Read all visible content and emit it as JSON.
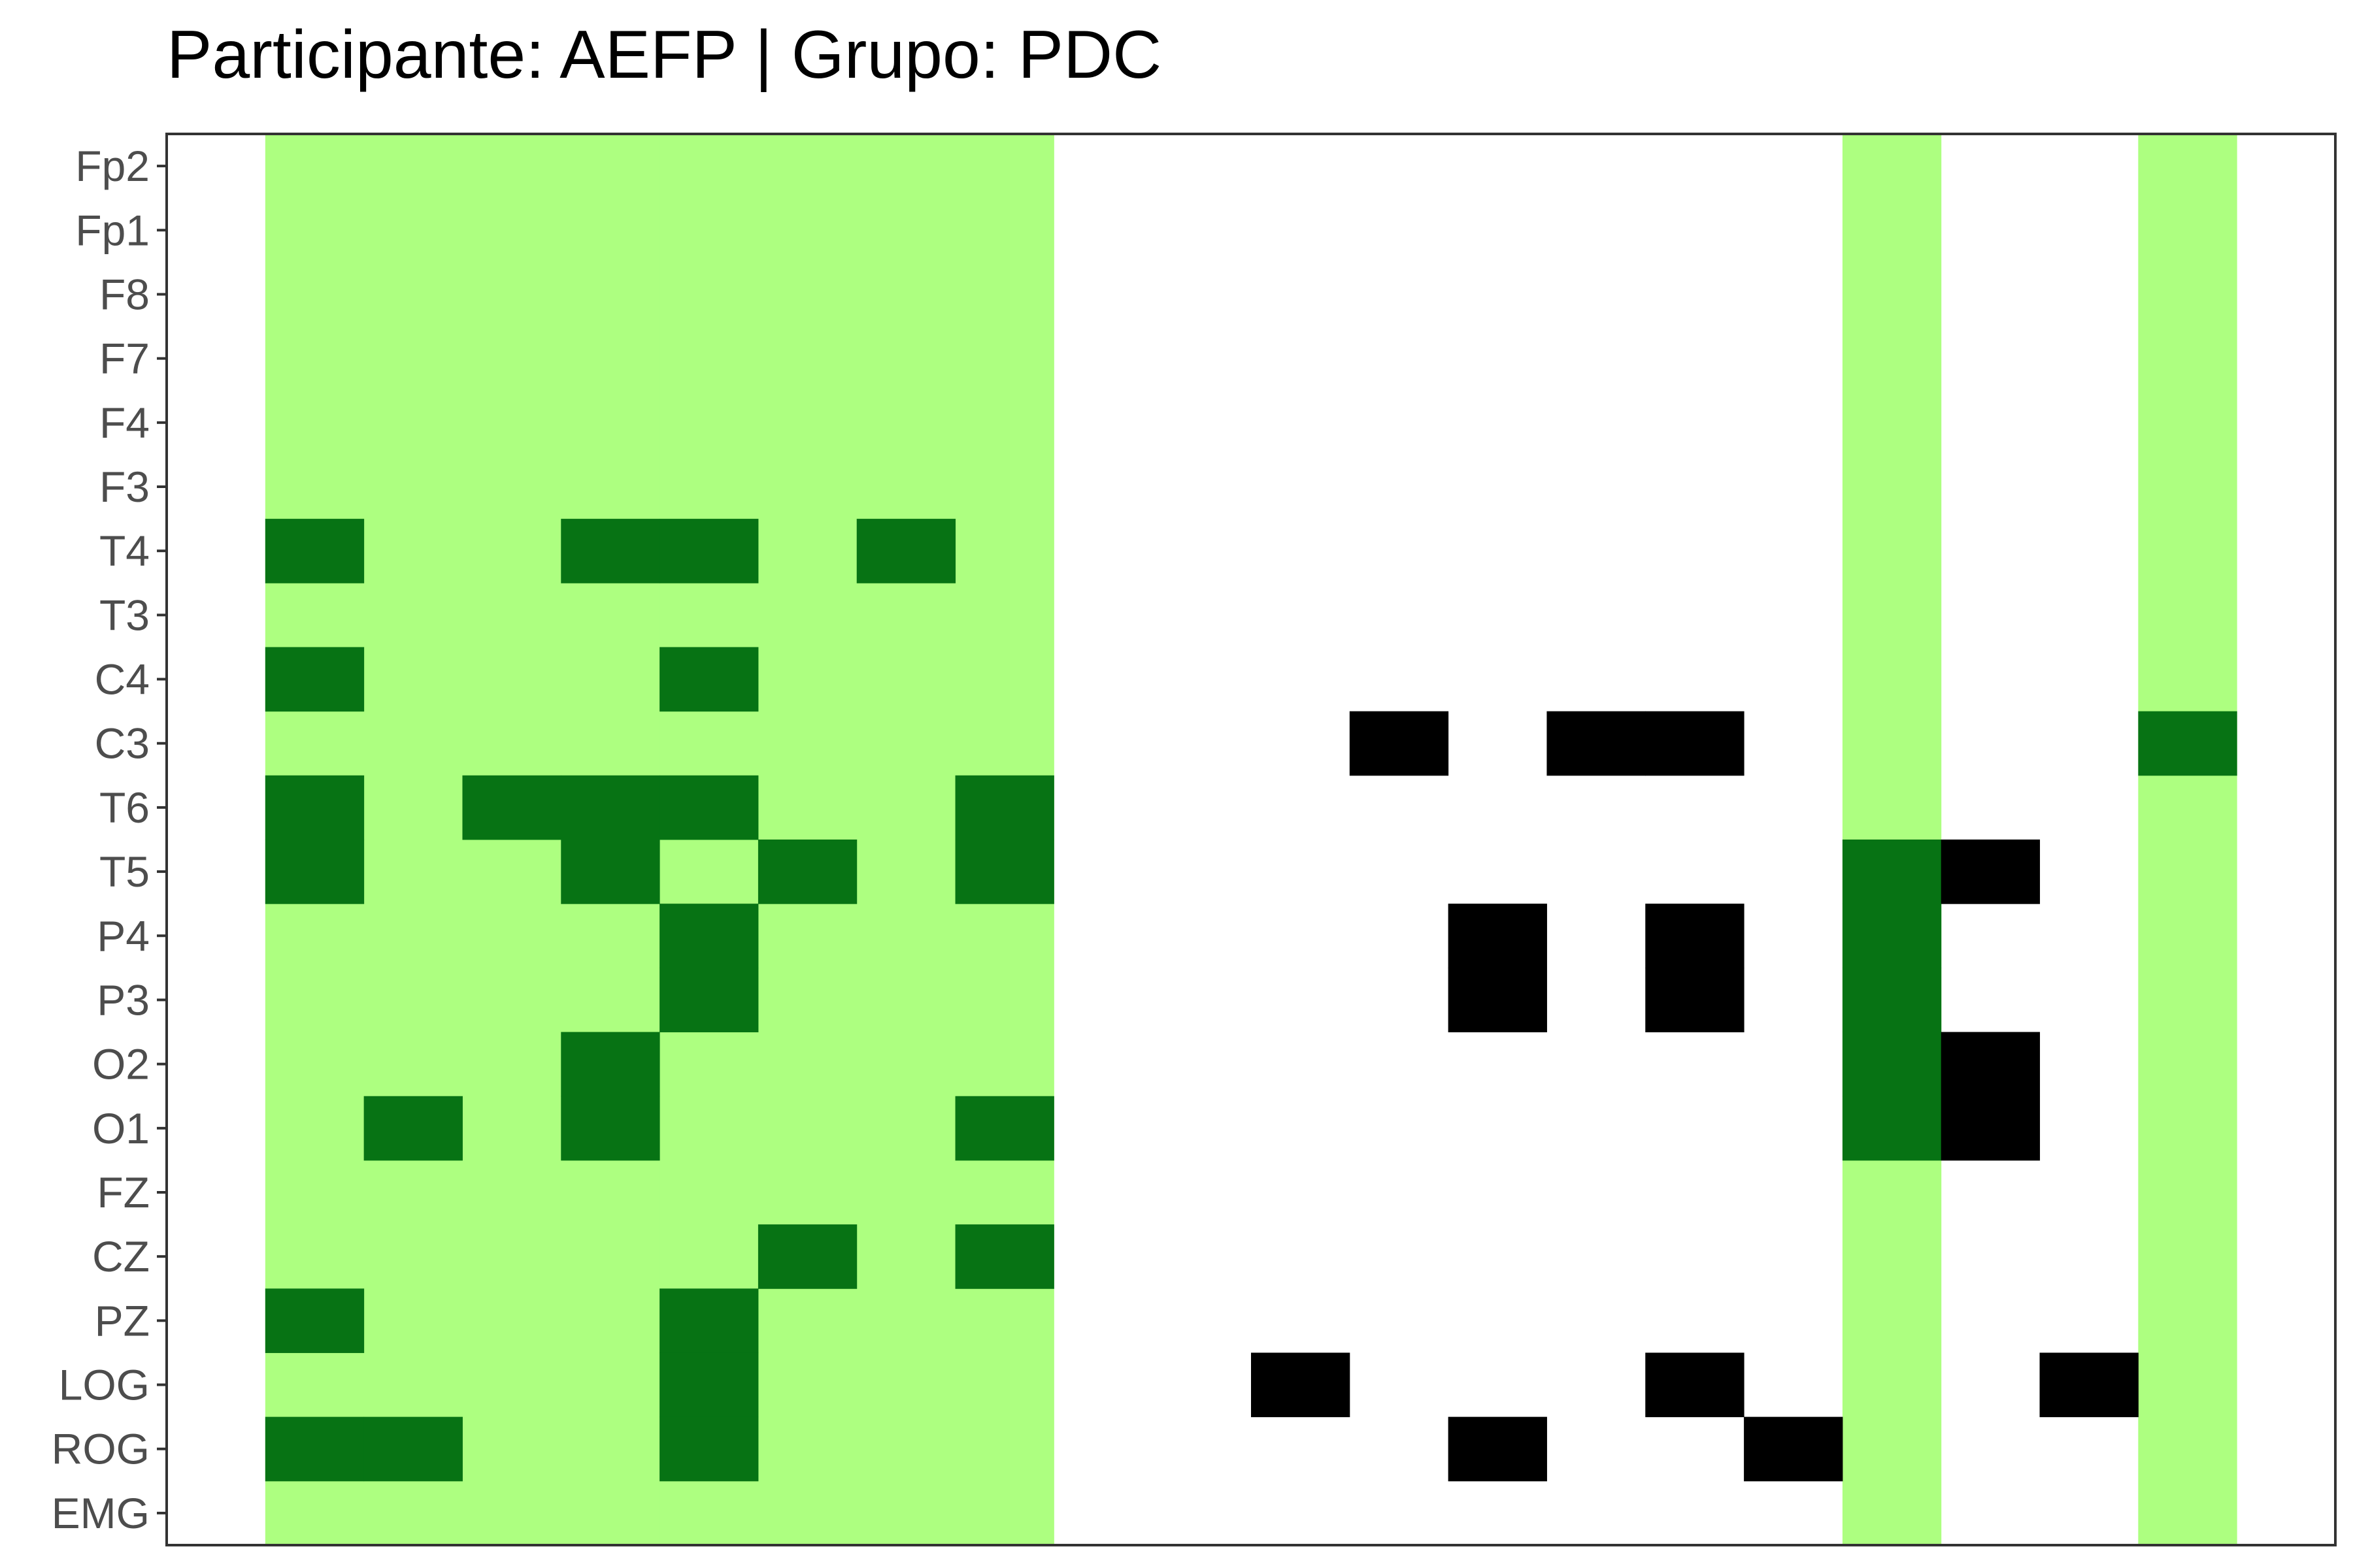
{
  "chart_data": {
    "type": "heatmap",
    "title": "Participante: AEFP | Grupo: PDC",
    "y_labels": [
      "Fp2",
      "Fp1",
      "F8",
      "F7",
      "F4",
      "F3",
      "T4",
      "T3",
      "C4",
      "C3",
      "T6",
      "T5",
      "P4",
      "P3",
      "O2",
      "O1",
      "FZ",
      "CZ",
      "PZ",
      "LOG",
      "ROG",
      "EMG"
    ],
    "n_columns": 22,
    "legend": "none",
    "grid": false,
    "colors": {
      "background": "#ffffff",
      "highlight": "#adff80",
      "green": "#077314",
      "black": "#000000",
      "border": "#333333",
      "tick_label": "#4d4d4d"
    },
    "highlight_columns": [
      1,
      2,
      3,
      4,
      5,
      6,
      7,
      8,
      17,
      20
    ],
    "cells": [
      {
        "channel": "T4",
        "column": 1,
        "color": "green"
      },
      {
        "channel": "T4",
        "column": 4,
        "color": "green"
      },
      {
        "channel": "T4",
        "column": 5,
        "color": "green"
      },
      {
        "channel": "T4",
        "column": 7,
        "color": "green"
      },
      {
        "channel": "C4",
        "column": 1,
        "color": "green"
      },
      {
        "channel": "C4",
        "column": 5,
        "color": "green"
      },
      {
        "channel": "C3",
        "column": 12,
        "color": "black"
      },
      {
        "channel": "C3",
        "column": 14,
        "color": "black"
      },
      {
        "channel": "C3",
        "column": 15,
        "color": "black"
      },
      {
        "channel": "C3",
        "column": 20,
        "color": "green"
      },
      {
        "channel": "T6",
        "column": 1,
        "color": "green"
      },
      {
        "channel": "T6",
        "column": 3,
        "color": "green"
      },
      {
        "channel": "T6",
        "column": 4,
        "color": "green"
      },
      {
        "channel": "T6",
        "column": 5,
        "color": "green"
      },
      {
        "channel": "T6",
        "column": 8,
        "color": "green"
      },
      {
        "channel": "T5",
        "column": 1,
        "color": "green"
      },
      {
        "channel": "T5",
        "column": 4,
        "color": "green"
      },
      {
        "channel": "T5",
        "column": 6,
        "color": "green"
      },
      {
        "channel": "T5",
        "column": 8,
        "color": "green"
      },
      {
        "channel": "T5",
        "column": 17,
        "color": "green"
      },
      {
        "channel": "T5",
        "column": 18,
        "color": "black"
      },
      {
        "channel": "P4",
        "column": 5,
        "color": "green"
      },
      {
        "channel": "P4",
        "column": 13,
        "color": "black"
      },
      {
        "channel": "P4",
        "column": 15,
        "color": "black"
      },
      {
        "channel": "P4",
        "column": 17,
        "color": "green"
      },
      {
        "channel": "P3",
        "column": 5,
        "color": "green"
      },
      {
        "channel": "P3",
        "column": 13,
        "color": "black"
      },
      {
        "channel": "P3",
        "column": 15,
        "color": "black"
      },
      {
        "channel": "P3",
        "column": 17,
        "color": "green"
      },
      {
        "channel": "O2",
        "column": 4,
        "color": "green"
      },
      {
        "channel": "O2",
        "column": 17,
        "color": "green"
      },
      {
        "channel": "O2",
        "column": 18,
        "color": "black"
      },
      {
        "channel": "O1",
        "column": 2,
        "color": "green"
      },
      {
        "channel": "O1",
        "column": 4,
        "color": "green"
      },
      {
        "channel": "O1",
        "column": 8,
        "color": "green"
      },
      {
        "channel": "O1",
        "column": 17,
        "color": "green"
      },
      {
        "channel": "O1",
        "column": 18,
        "color": "black"
      },
      {
        "channel": "CZ",
        "column": 6,
        "color": "green"
      },
      {
        "channel": "CZ",
        "column": 8,
        "color": "green"
      },
      {
        "channel": "PZ",
        "column": 1,
        "color": "green"
      },
      {
        "channel": "PZ",
        "column": 5,
        "color": "green"
      },
      {
        "channel": "LOG",
        "column": 5,
        "color": "green"
      },
      {
        "channel": "LOG",
        "column": 11,
        "color": "black"
      },
      {
        "channel": "LOG",
        "column": 15,
        "color": "black"
      },
      {
        "channel": "LOG",
        "column": 19,
        "color": "black"
      },
      {
        "channel": "ROG",
        "column": 1,
        "color": "green"
      },
      {
        "channel": "ROG",
        "column": 2,
        "color": "green"
      },
      {
        "channel": "ROG",
        "column": 5,
        "color": "green"
      },
      {
        "channel": "ROG",
        "column": 13,
        "color": "black"
      },
      {
        "channel": "ROG",
        "column": 16,
        "color": "black"
      }
    ]
  }
}
